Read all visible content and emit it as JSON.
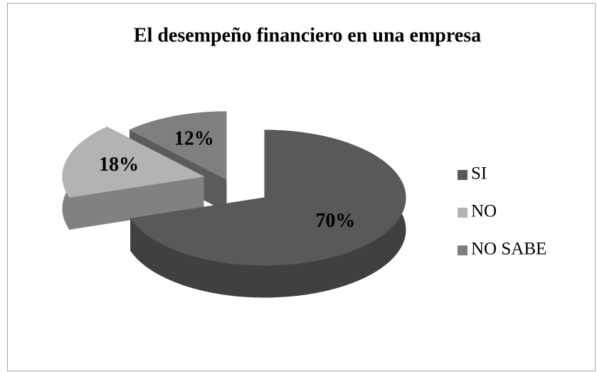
{
  "chart_data": {
    "type": "pie3d",
    "title": "El desempeño financiero en una empresa",
    "categories": [
      "SI",
      "NO",
      "NO SABE"
    ],
    "values": [
      70,
      18,
      12
    ],
    "value_labels": [
      "70%",
      "18%",
      "12%"
    ],
    "colors": [
      "#595959",
      "#b3b3b3",
      "#7f7f7f"
    ],
    "legend": "right"
  }
}
